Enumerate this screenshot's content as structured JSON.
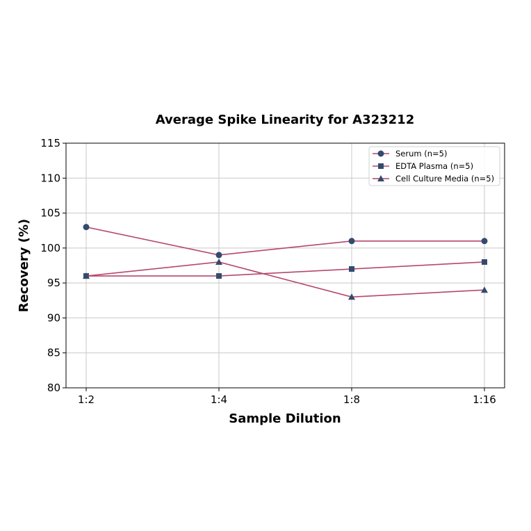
{
  "chart_data": {
    "type": "line",
    "title": "Average Spike Linearity for A323212",
    "xlabel": "Sample Dilution",
    "ylabel": "Recovery (%)",
    "categories": [
      "1:2",
      "1:4",
      "1:8",
      "1:16"
    ],
    "ylim": [
      80,
      115
    ],
    "yticks": [
      80,
      85,
      90,
      95,
      100,
      105,
      110,
      115
    ],
    "grid": true,
    "legend_position": "upper right",
    "series": [
      {
        "name": "Serum (n=5)",
        "marker": "circle",
        "values": [
          103,
          99,
          101,
          101
        ]
      },
      {
        "name": "EDTA Plasma (n=5)",
        "marker": "square",
        "values": [
          96,
          96,
          97,
          98
        ]
      },
      {
        "name": "Cell Culture Media (n=5)",
        "marker": "triangle",
        "values": [
          96,
          98,
          93,
          94
        ]
      }
    ],
    "colors": {
      "line": "#b5476b",
      "marker": "#344a6e",
      "grid": "#c8c8c8",
      "axis": "#000000"
    }
  }
}
